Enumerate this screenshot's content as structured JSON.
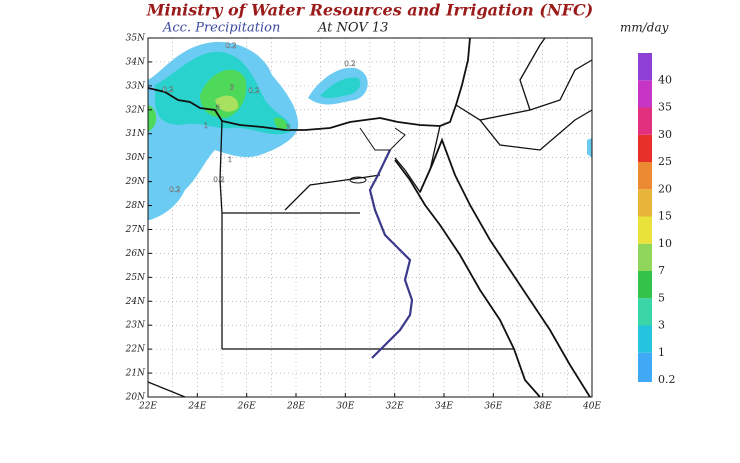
{
  "header": {
    "title": "Ministry of Water Resources and Irrigation (NFC)",
    "variable": "Acc. Precipitation",
    "date": "At NOV 13",
    "units": "mm/day"
  },
  "map": {
    "lat_labels": [
      "20N",
      "21N",
      "22N",
      "23N",
      "24N",
      "25N",
      "26N",
      "27N",
      "28N",
      "29N",
      "30N",
      "31N",
      "32N",
      "33N",
      "34N",
      "35N"
    ],
    "lon_labels": [
      "22E",
      "24E",
      "26E",
      "28E",
      "30E",
      "32E",
      "34E",
      "36E",
      "38E",
      "40E"
    ],
    "contour_labels": [
      "0.2",
      "3",
      "5",
      "0.2",
      "1",
      "1",
      "3",
      "0.2",
      "0.2",
      "0.2",
      "0.2"
    ]
  },
  "colorbar": {
    "labels": [
      "0.2",
      "1",
      "3",
      "5",
      "7",
      "10",
      "15",
      "20",
      "25",
      "30",
      "35",
      "40"
    ]
  }
}
